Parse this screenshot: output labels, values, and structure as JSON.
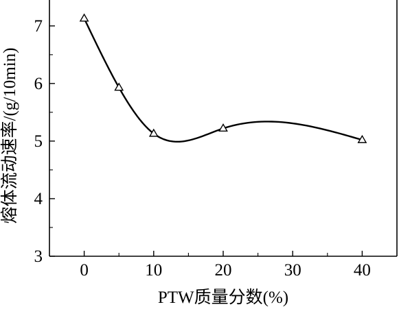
{
  "chart_data": {
    "type": "line",
    "xlabel": "PTW质量分数(%)",
    "ylabel": "熔体流动速率/(g/10min)",
    "xlim": [
      -5,
      45
    ],
    "ylim": [
      3,
      7.45
    ],
    "x_ticks": [
      0,
      10,
      20,
      30,
      40
    ],
    "y_ticks": [
      3,
      4,
      5,
      6,
      7
    ],
    "x_tick_labels": [
      "0",
      "10",
      "20",
      "30",
      "40"
    ],
    "y_tick_labels": [
      "3",
      "4",
      "5",
      "6",
      "7"
    ],
    "x_minor_ticks": [
      5,
      15,
      25,
      35
    ],
    "y_minor_ticks": [
      3.5,
      4.5,
      5.5,
      6.5
    ],
    "grid": false,
    "marker": "open-triangle",
    "series": [
      {
        "x": [
          0,
          5,
          10,
          20,
          40
        ],
        "y": [
          7.13,
          5.93,
          5.13,
          5.22,
          5.02
        ],
        "color": "#000000"
      }
    ]
  }
}
